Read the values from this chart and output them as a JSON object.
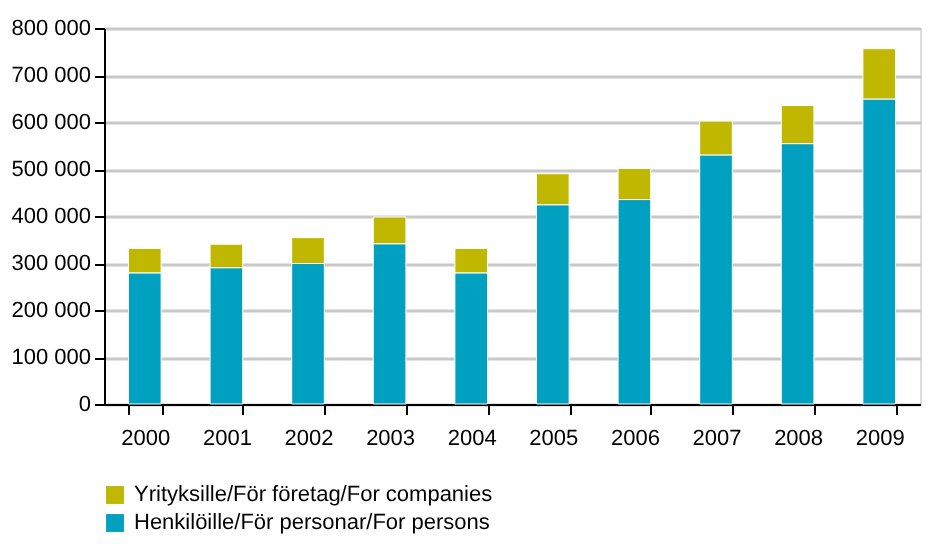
{
  "chart_data": {
    "type": "bar",
    "stacked": true,
    "categories": [
      "2000",
      "2001",
      "2002",
      "2003",
      "2004",
      "2005",
      "2006",
      "2007",
      "2008",
      "2009"
    ],
    "series": [
      {
        "name": "Henkilöille/För personar/For persons",
        "color": "#00a0c0",
        "values": [
          279000,
          290000,
          299000,
          341000,
          279000,
          424000,
          435000,
          530000,
          554000,
          649000
        ]
      },
      {
        "name": "Yrityksille/För företag/For companies",
        "color": "#c0b800",
        "values": [
          52000,
          50000,
          55000,
          57000,
          52000,
          66000,
          66000,
          72000,
          81000,
          107000
        ]
      }
    ],
    "ylim": [
      0,
      800000
    ],
    "yticks": [
      {
        "value": 0,
        "label": "0"
      },
      {
        "value": 100000,
        "label": "100 000"
      },
      {
        "value": 200000,
        "label": "200 000"
      },
      {
        "value": 300000,
        "label": "300 000"
      },
      {
        "value": 400000,
        "label": "400 000"
      },
      {
        "value": 500000,
        "label": "500 000"
      },
      {
        "value": 600000,
        "label": "600 000"
      },
      {
        "value": 700000,
        "label": "700 000"
      },
      {
        "value": 800000,
        "label": "800 000"
      }
    ],
    "grid": "y",
    "legend": "bottom"
  }
}
